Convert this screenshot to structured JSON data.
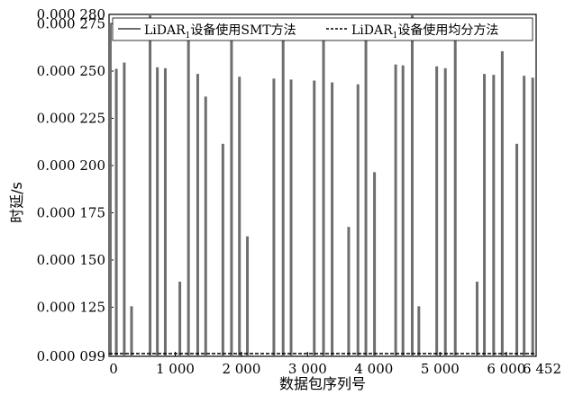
{
  "chart_data": {
    "type": "bar",
    "xlabel": "数据包序列号",
    "ylabel": "时延/s",
    "xlim": [
      0,
      6452
    ],
    "ylim": [
      0.099,
      0.28
    ],
    "x_ticks": [
      {
        "value": 0,
        "label": "0"
      },
      {
        "value": 1000,
        "label": "1 000"
      },
      {
        "value": 2000,
        "label": "2 000"
      },
      {
        "value": 3000,
        "label": "3 000"
      },
      {
        "value": 4000,
        "label": "4 000"
      },
      {
        "value": 5000,
        "label": "5 000"
      },
      {
        "value": 6000,
        "label": "6 000"
      },
      {
        "value": 6452,
        "label": "6 452"
      }
    ],
    "y_ticks": [
      {
        "value": 0.099,
        "label": "0.000 099"
      },
      {
        "value": 0.125,
        "label": "0.000 125"
      },
      {
        "value": 0.15,
        "label": "0.000 150"
      },
      {
        "value": 0.175,
        "label": "0.000 175"
      },
      {
        "value": 0.2,
        "label": "0.000 200"
      },
      {
        "value": 0.225,
        "label": "0.000 225"
      },
      {
        "value": 0.25,
        "label": "0.000 250"
      },
      {
        "value": 0.275,
        "label": "0.000 275"
      },
      {
        "value": 0.28,
        "label": "0.000 280"
      }
    ],
    "legend_position": "top",
    "series": [
      {
        "name_main": "LiDAR",
        "name_sub": "1",
        "name_suffix": "设备使用SMT方法",
        "style": "solid",
        "color": "#6e6e6e",
        "points": [
          {
            "x": 20,
            "y": 0.2755
          },
          {
            "x": 110,
            "y": 0.2512
          },
          {
            "x": 230,
            "y": 0.2545
          },
          {
            "x": 340,
            "y": 0.1255
          },
          {
            "x": 620,
            "y": 0.28
          },
          {
            "x": 730,
            "y": 0.252
          },
          {
            "x": 850,
            "y": 0.2515
          },
          {
            "x": 1070,
            "y": 0.1385
          },
          {
            "x": 1200,
            "y": 0.2755
          },
          {
            "x": 1340,
            "y": 0.2485
          },
          {
            "x": 1460,
            "y": 0.2365
          },
          {
            "x": 1720,
            "y": 0.2115
          },
          {
            "x": 1850,
            "y": 0.274
          },
          {
            "x": 1970,
            "y": 0.247
          },
          {
            "x": 2090,
            "y": 0.1625
          },
          {
            "x": 2490,
            "y": 0.246
          },
          {
            "x": 2630,
            "y": 0.2715
          },
          {
            "x": 2750,
            "y": 0.2455
          },
          {
            "x": 3100,
            "y": 0.245
          },
          {
            "x": 3240,
            "y": 0.2705
          },
          {
            "x": 3370,
            "y": 0.244
          },
          {
            "x": 3620,
            "y": 0.1675
          },
          {
            "x": 3760,
            "y": 0.243
          },
          {
            "x": 3880,
            "y": 0.273
          },
          {
            "x": 4010,
            "y": 0.1965
          },
          {
            "x": 4330,
            "y": 0.2535
          },
          {
            "x": 4440,
            "y": 0.253
          },
          {
            "x": 4580,
            "y": 0.2795
          },
          {
            "x": 4680,
            "y": 0.1255
          },
          {
            "x": 4950,
            "y": 0.2525
          },
          {
            "x": 5080,
            "y": 0.2515
          },
          {
            "x": 5230,
            "y": 0.277
          },
          {
            "x": 5560,
            "y": 0.1385
          },
          {
            "x": 5670,
            "y": 0.2485
          },
          {
            "x": 5810,
            "y": 0.248
          },
          {
            "x": 5940,
            "y": 0.2605
          },
          {
            "x": 6160,
            "y": 0.2115
          },
          {
            "x": 6270,
            "y": 0.2475
          },
          {
            "x": 6400,
            "y": 0.2465
          }
        ]
      },
      {
        "name_main": "LiDAR",
        "name_sub": "1",
        "name_suffix": "设备使用均分方法",
        "style": "dashed",
        "color": "#000000",
        "points": []
      }
    ]
  }
}
